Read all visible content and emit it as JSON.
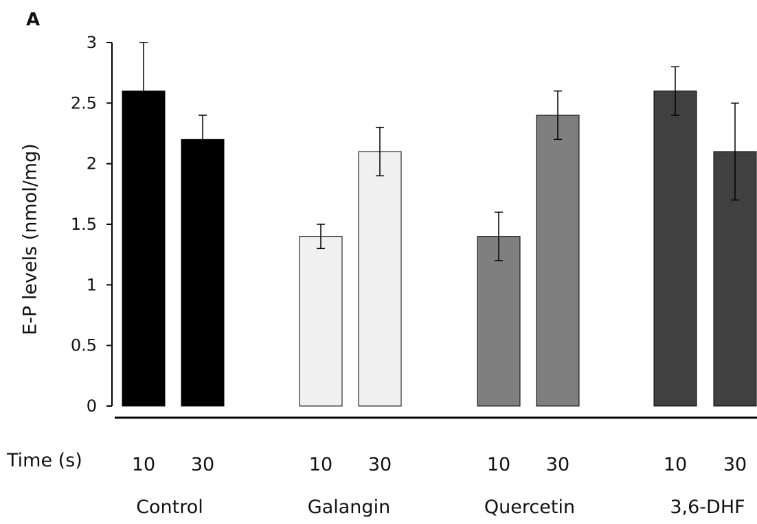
{
  "panel_label": "A",
  "time_label": "Time (s)",
  "chart_data": {
    "type": "bar",
    "title": "",
    "ylabel": "E-P levels (nmol/mg)",
    "ylim": [
      0,
      3
    ],
    "yticks": [
      0,
      0.5,
      1,
      1.5,
      2,
      2.5,
      3
    ],
    "ytick_labels": [
      "0",
      "0.5",
      "1",
      "1.5",
      "2",
      "2.5",
      "3"
    ],
    "groups": [
      {
        "name": "Control",
        "color": "#000000",
        "bars": [
          {
            "time": "10",
            "value": 2.6,
            "error": 0.4
          },
          {
            "time": "30",
            "value": 2.2,
            "error": 0.2
          }
        ]
      },
      {
        "name": "Galangin",
        "color": "#f0f0f0",
        "bars": [
          {
            "time": "10",
            "value": 1.4,
            "error": 0.1
          },
          {
            "time": "30",
            "value": 2.1,
            "error": 0.2
          }
        ]
      },
      {
        "name": "Quercetin",
        "color": "#7f7f7f",
        "bars": [
          {
            "time": "10",
            "value": 1.4,
            "error": 0.2
          },
          {
            "time": "30",
            "value": 2.4,
            "error": 0.2
          }
        ]
      },
      {
        "name": "3,6-DHF",
        "color": "#404040",
        "bars": [
          {
            "time": "10",
            "value": 2.6,
            "error": 0.2
          },
          {
            "time": "30",
            "value": 2.1,
            "error": 0.4
          }
        ]
      }
    ],
    "grid": false,
    "legend": "none"
  }
}
